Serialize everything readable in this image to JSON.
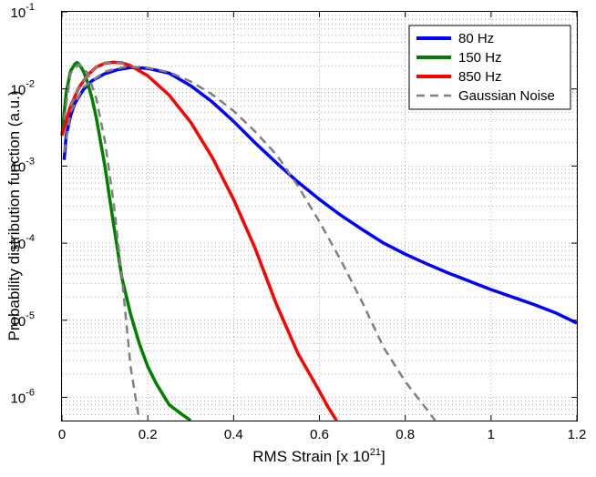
{
  "chart_data": {
    "type": "line",
    "title": "",
    "xlabel": {
      "base": "RMS Strain [x 10",
      "sup": "21",
      "end": "]"
    },
    "ylabel": "Probability distribution function (a.u.)",
    "xlim": [
      0,
      1.2
    ],
    "ylim": [
      5e-07,
      0.1
    ],
    "yscale": "log",
    "grid": true,
    "legend_position": "top-right",
    "x_ticks": [
      "0",
      "0.2",
      "0.4",
      "0.6",
      "0.8",
      "1",
      "1.2"
    ],
    "y_ticks": [
      {
        "base": "10",
        "exp": "-1"
      },
      {
        "base": "10",
        "exp": "-2"
      },
      {
        "base": "10",
        "exp": "-3"
      },
      {
        "base": "10",
        "exp": "-4"
      },
      {
        "base": "10",
        "exp": "-5"
      },
      {
        "base": "10",
        "exp": "-6"
      }
    ],
    "series": [
      {
        "name": "80 Hz",
        "color": "#0000ff",
        "style": "solid",
        "x": [
          0.005,
          0.01,
          0.02,
          0.03,
          0.05,
          0.07,
          0.1,
          0.13,
          0.16,
          0.2,
          0.25,
          0.3,
          0.35,
          0.4,
          0.45,
          0.5,
          0.55,
          0.6,
          0.65,
          0.7,
          0.75,
          0.8,
          0.85,
          0.9,
          0.95,
          1.0,
          1.05,
          1.1,
          1.15,
          1.2
        ],
        "y": [
          0.0012,
          0.0025,
          0.0045,
          0.0065,
          0.0098,
          0.0128,
          0.0158,
          0.0178,
          0.019,
          0.0185,
          0.016,
          0.011,
          0.0068,
          0.0038,
          0.002,
          0.0011,
          0.00062,
          0.00037,
          0.00023,
          0.00015,
          0.0001,
          7.2e-05,
          5.4e-05,
          4.1e-05,
          3.2e-05,
          2.5e-05,
          2e-05,
          1.6e-05,
          1.25e-05,
          9.2e-06
        ]
      },
      {
        "name": "150 Hz",
        "color": "#008000",
        "style": "solid",
        "x": [
          0.0,
          0.01,
          0.02,
          0.03,
          0.035,
          0.04,
          0.05,
          0.06,
          0.07,
          0.08,
          0.1,
          0.12,
          0.14,
          0.16,
          0.18,
          0.2,
          0.22,
          0.25,
          0.28,
          0.3
        ],
        "y": [
          0.0025,
          0.009,
          0.017,
          0.021,
          0.022,
          0.021,
          0.017,
          0.012,
          0.0075,
          0.0042,
          0.001,
          0.00018,
          3.5e-05,
          1.2e-05,
          5e-06,
          2.5e-06,
          1.5e-06,
          8e-07,
          6e-07,
          5e-07
        ]
      },
      {
        "name": "850 Hz",
        "color": "#ff0000",
        "style": "solid",
        "x": [
          0.0,
          0.02,
          0.04,
          0.06,
          0.08,
          0.1,
          0.12,
          0.14,
          0.16,
          0.2,
          0.25,
          0.3,
          0.35,
          0.4,
          0.45,
          0.5,
          0.55,
          0.6,
          0.62,
          0.64
        ],
        "y": [
          0.0025,
          0.006,
          0.0105,
          0.0152,
          0.0192,
          0.0215,
          0.0222,
          0.0218,
          0.02,
          0.0148,
          0.0083,
          0.0037,
          0.0013,
          0.00037,
          8.6e-05,
          1.6e-05,
          3.7e-06,
          1.2e-06,
          7.5e-07,
          5e-07
        ]
      },
      {
        "name": "Gaussian Noise",
        "color": "#808080",
        "style": "dashed",
        "x": [
          0.005,
          0.02,
          0.05,
          0.1,
          0.15,
          0.2,
          0.25,
          0.3,
          0.35,
          0.4,
          0.45,
          0.5,
          0.55,
          0.6,
          0.65,
          0.7,
          0.75,
          0.8,
          0.85,
          0.87
        ],
        "y": [
          0.0015,
          0.005,
          0.0105,
          0.0168,
          0.0195,
          0.0188,
          0.0165,
          0.0125,
          0.0085,
          0.0052,
          0.0028,
          0.0014,
          0.00055,
          0.00019,
          6e-05,
          1.7e-05,
          4.4e-06,
          1.6e-06,
          7e-07,
          5e-07
        ]
      },
      {
        "name": "",
        "color": "#808080",
        "style": "dashed",
        "legend": false,
        "x": [
          0.005,
          0.02,
          0.04,
          0.06,
          0.08,
          0.1,
          0.12,
          0.14,
          0.16,
          0.18
        ],
        "y": [
          0.004,
          0.016,
          0.021,
          0.016,
          0.0075,
          0.0021,
          0.00035,
          3.5e-05,
          2.5e-06,
          5e-07
        ]
      },
      {
        "name": "",
        "color": "#808080",
        "style": "dashed",
        "legend": false,
        "x": [
          0.02,
          0.04,
          0.06,
          0.08,
          0.1,
          0.12,
          0.14,
          0.16
        ],
        "y": [
          0.006,
          0.0105,
          0.0152,
          0.0192,
          0.0215,
          0.0222,
          0.0218,
          0.02
        ]
      }
    ]
  }
}
